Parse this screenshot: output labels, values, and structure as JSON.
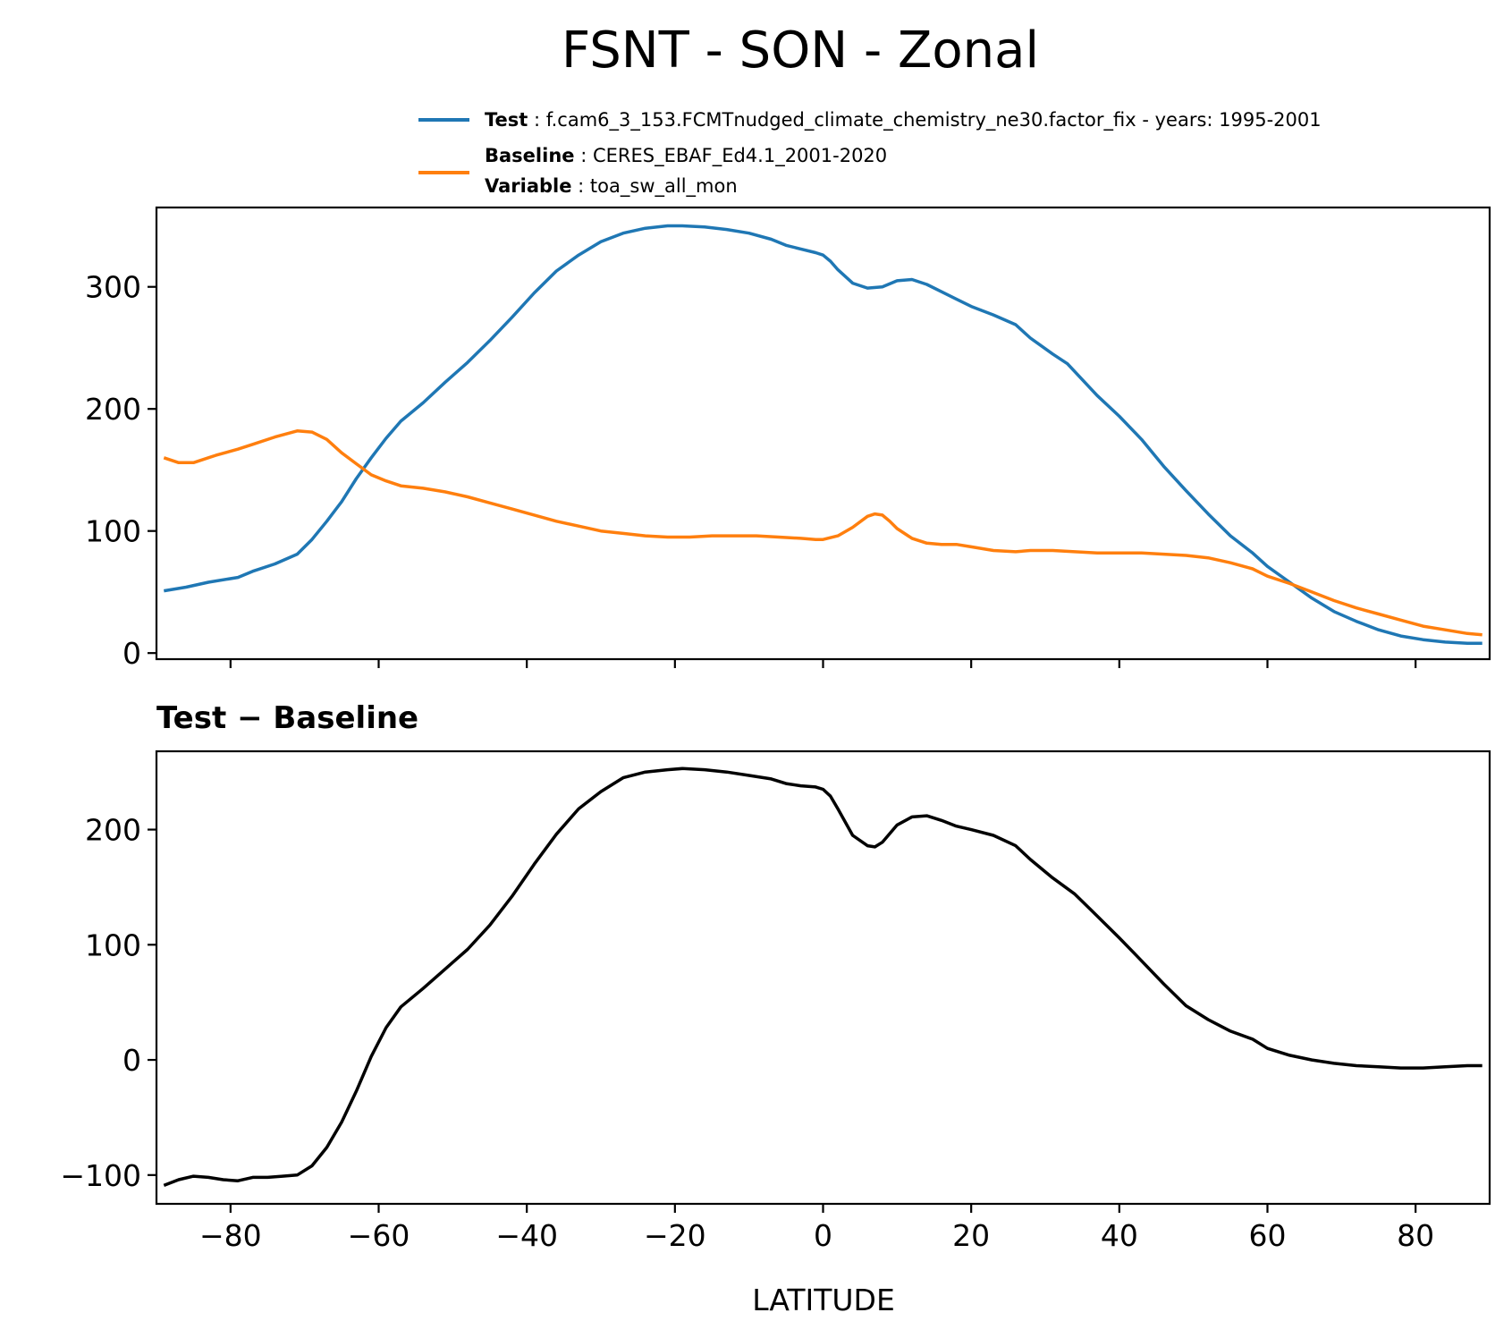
{
  "figure": {
    "title": "FSNT - SON - Zonal"
  },
  "legend": {
    "test": {
      "label": "Test",
      "value": "f.cam6_3_153.FCMTnudged_climate_chemistry_ne30.factor_fix - years: 1995-2001",
      "color": "#1f77b4"
    },
    "baseline": {
      "label": "Baseline",
      "value": "CERES_EBAF_Ed4.1_2001-2020",
      "color": "#ff7f0e"
    },
    "variable": {
      "label": "Variable",
      "value": "toa_sw_all_mon"
    }
  },
  "chart_data": [
    {
      "type": "line",
      "panel": "top",
      "xlim": [
        -90,
        90
      ],
      "ylim": [
        -5,
        365
      ],
      "xticks": [
        -80,
        -60,
        -40,
        -20,
        0,
        20,
        40,
        60,
        80
      ],
      "xtick_labels_visible": false,
      "yticks": [
        0,
        100,
        200,
        300
      ],
      "ytick_labels": [
        "0",
        "100",
        "200",
        "300"
      ],
      "grid": false,
      "legend_position": "above-top-right",
      "series": [
        {
          "name": "Test",
          "color": "#1f77b4",
          "x": [
            -89,
            -86,
            -83,
            -79,
            -77,
            -74,
            -71,
            -69,
            -67,
            -65,
            -63,
            -61,
            -59,
            -57,
            -54,
            -51,
            -48,
            -45,
            -42,
            -39,
            -36,
            -33,
            -30,
            -27,
            -24,
            -21,
            -19,
            -16,
            -13,
            -10,
            -7,
            -5,
            -3,
            -1,
            0,
            1,
            2,
            4,
            6,
            8,
            10,
            12,
            14,
            16,
            18,
            20,
            23,
            26,
            28,
            31,
            33,
            35,
            37,
            40,
            43,
            46,
            49,
            52,
            55,
            58,
            60,
            63,
            66,
            69,
            72,
            75,
            78,
            81,
            84,
            87,
            89
          ],
          "values": [
            51,
            54,
            58,
            62,
            67,
            73,
            81,
            93,
            108,
            124,
            143,
            160,
            176,
            190,
            205,
            222,
            238,
            256,
            275,
            295,
            313,
            326,
            337,
            344,
            348,
            350,
            350,
            349,
            347,
            344,
            339,
            334,
            331,
            328,
            326,
            321,
            314,
            303,
            299,
            300,
            305,
            306,
            302,
            296,
            290,
            284,
            277,
            269,
            258,
            245,
            237,
            224,
            211,
            194,
            175,
            153,
            133,
            114,
            96,
            82,
            71,
            58,
            45,
            34,
            26,
            19,
            14,
            11,
            9,
            8,
            8
          ]
        },
        {
          "name": "Baseline",
          "color": "#ff7f0e",
          "x": [
            -89,
            -87,
            -85,
            -82,
            -79,
            -77,
            -74,
            -71,
            -69,
            -67,
            -65,
            -63,
            -61,
            -59,
            -57,
            -54,
            -51,
            -48,
            -45,
            -42,
            -39,
            -36,
            -33,
            -30,
            -27,
            -24,
            -21,
            -18,
            -15,
            -12,
            -9,
            -6,
            -3,
            -1,
            0,
            2,
            4,
            6,
            7,
            8,
            9,
            10,
            12,
            14,
            16,
            18,
            20,
            23,
            26,
            28,
            31,
            34,
            37,
            40,
            43,
            46,
            49,
            52,
            55,
            58,
            60,
            63,
            66,
            69,
            72,
            75,
            78,
            81,
            84,
            87,
            89
          ],
          "values": [
            160,
            156,
            156,
            162,
            167,
            171,
            177,
            182,
            181,
            175,
            164,
            155,
            146,
            141,
            137,
            135,
            132,
            128,
            123,
            118,
            113,
            108,
            104,
            100,
            98,
            96,
            95,
            95,
            96,
            96,
            96,
            95,
            94,
            93,
            93,
            96,
            103,
            112,
            114,
            113,
            108,
            102,
            94,
            90,
            89,
            89,
            87,
            84,
            83,
            84,
            84,
            83,
            82,
            82,
            82,
            81,
            80,
            78,
            74,
            69,
            63,
            57,
            50,
            43,
            37,
            32,
            27,
            22,
            19,
            16,
            15
          ]
        }
      ]
    },
    {
      "type": "line",
      "panel": "bottom",
      "title": "Test − Baseline",
      "xlabel": "LATITUDE",
      "xlim": [
        -90,
        90
      ],
      "ylim": [
        -125,
        268
      ],
      "xticks": [
        -80,
        -60,
        -40,
        -20,
        0,
        20,
        40,
        60,
        80
      ],
      "xtick_labels": [
        "−80",
        "−60",
        "−40",
        "−20",
        "0",
        "20",
        "40",
        "60",
        "80"
      ],
      "yticks": [
        -100,
        0,
        100,
        200
      ],
      "ytick_labels": [
        "−100",
        "0",
        "100",
        "200"
      ],
      "grid": false,
      "series": [
        {
          "color": "#000000",
          "x": [
            -89,
            -87,
            -85,
            -83,
            -81,
            -79,
            -77,
            -75,
            -73,
            -71,
            -69,
            -67,
            -65,
            -63,
            -61,
            -59,
            -57,
            -54,
            -51,
            -48,
            -45,
            -42,
            -39,
            -36,
            -33,
            -30,
            -27,
            -24,
            -21,
            -19,
            -16,
            -13,
            -10,
            -7,
            -5,
            -3,
            -1,
            0,
            1,
            2,
            4,
            6,
            7,
            8,
            10,
            12,
            14,
            16,
            18,
            20,
            23,
            26,
            28,
            31,
            34,
            37,
            40,
            43,
            46,
            49,
            52,
            55,
            58,
            60,
            63,
            66,
            69,
            72,
            75,
            78,
            81,
            84,
            87,
            89
          ],
          "values": [
            -109,
            -104,
            -101,
            -102,
            -104,
            -105,
            -102,
            -102,
            -101,
            -100,
            -92,
            -76,
            -54,
            -27,
            3,
            28,
            46,
            62,
            79,
            96,
            117,
            142,
            170,
            196,
            218,
            233,
            245,
            250,
            252,
            253,
            252,
            250,
            247,
            244,
            240,
            238,
            237,
            235,
            229,
            218,
            195,
            186,
            185,
            189,
            204,
            211,
            212,
            208,
            203,
            200,
            195,
            186,
            174,
            158,
            144,
            125,
            106,
            86,
            66,
            47,
            35,
            25,
            18,
            10,
            4,
            0,
            -3,
            -5,
            -6,
            -7,
            -7,
            -6,
            -5,
            -5
          ]
        }
      ]
    }
  ]
}
